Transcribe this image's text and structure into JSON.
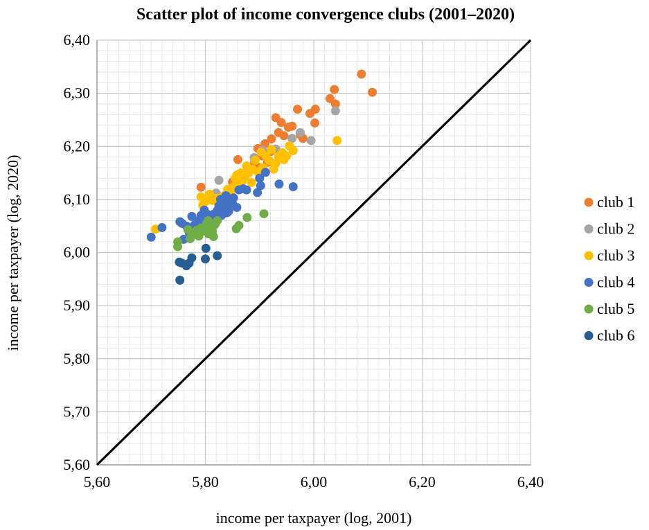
{
  "chart_data": {
    "type": "scatter",
    "title": "Scatter plot of income convergence clubs (2001–2020)",
    "xlabel": "income per taxpayer (log, 2001)",
    "ylabel": "income per taxpayer (log, 2020)",
    "xlim": [
      5.6,
      6.4
    ],
    "ylim": [
      5.6,
      6.4
    ],
    "x_ticks": [
      "5,60",
      "5,80",
      "6,00",
      "6,20",
      "6,40"
    ],
    "y_ticks": [
      "5,60",
      "5,70",
      "5,80",
      "5,90",
      "6,00",
      "6,10",
      "6,20",
      "6,30",
      "6,40"
    ],
    "grid": true,
    "legend_position": "right",
    "reference_line": {
      "type": "y=x",
      "color": "#000000"
    },
    "series": [
      {
        "name": "club 1",
        "color": "#ED7D31",
        "points": [
          [
            6.088,
            6.336
          ],
          [
            6.108,
            6.302
          ],
          [
            6.038,
            6.307
          ],
          [
            6.04,
            6.28
          ],
          [
            6.03,
            6.29
          ],
          [
            6.003,
            6.27
          ],
          [
            5.993,
            6.262
          ],
          [
            6.002,
            6.244
          ],
          [
            5.97,
            6.27
          ],
          [
            5.975,
            6.222
          ],
          [
            5.98,
            6.215
          ],
          [
            5.96,
            6.238
          ],
          [
            5.953,
            6.236
          ],
          [
            5.94,
            6.245
          ],
          [
            5.93,
            6.254
          ],
          [
            5.945,
            6.22
          ],
          [
            5.922,
            6.214
          ],
          [
            5.91,
            6.205
          ],
          [
            5.897,
            6.196
          ],
          [
            5.905,
            6.182
          ],
          [
            5.891,
            6.172
          ],
          [
            5.884,
            6.161
          ],
          [
            5.86,
            6.175
          ],
          [
            5.85,
            6.133
          ],
          [
            5.792,
            6.123
          ],
          [
            5.935,
            6.226
          ],
          [
            5.9,
            6.16
          ],
          [
            5.92,
            6.19
          ],
          [
            5.87,
            6.14
          ],
          [
            5.915,
            6.17
          ]
        ]
      },
      {
        "name": "club 2",
        "color": "#A5A5A5",
        "points": [
          [
            6.04,
            6.267
          ],
          [
            5.995,
            6.211
          ],
          [
            5.975,
            6.226
          ],
          [
            5.96,
            6.215
          ],
          [
            5.905,
            6.193
          ],
          [
            5.89,
            6.179
          ],
          [
            5.825,
            6.136
          ],
          [
            5.82,
            6.112
          ],
          [
            5.93,
            6.195
          ],
          [
            5.875,
            6.15
          ]
        ]
      },
      {
        "name": "club 3",
        "color": "#FFC000",
        "points": [
          [
            6.043,
            6.211
          ],
          [
            5.962,
            6.192
          ],
          [
            5.95,
            6.182
          ],
          [
            5.942,
            6.188
          ],
          [
            5.935,
            6.181
          ],
          [
            5.93,
            6.168
          ],
          [
            5.926,
            6.157
          ],
          [
            5.922,
            6.194
          ],
          [
            5.918,
            6.173
          ],
          [
            5.912,
            6.182
          ],
          [
            5.906,
            6.16
          ],
          [
            5.903,
            6.189
          ],
          [
            5.897,
            6.152
          ],
          [
            5.892,
            6.174
          ],
          [
            5.887,
            6.157
          ],
          [
            5.88,
            6.15
          ],
          [
            5.876,
            6.163
          ],
          [
            5.872,
            6.142
          ],
          [
            5.868,
            6.135
          ],
          [
            5.864,
            6.128
          ],
          [
            5.858,
            6.146
          ],
          [
            5.852,
            6.124
          ],
          [
            5.847,
            6.111
          ],
          [
            5.841,
            6.119
          ],
          [
            5.836,
            6.108
          ],
          [
            5.83,
            6.104
          ],
          [
            5.826,
            6.095
          ],
          [
            5.82,
            6.102
          ],
          [
            5.814,
            6.098
          ],
          [
            5.808,
            6.11
          ],
          [
            5.8,
            6.096
          ],
          [
            5.795,
            6.089
          ],
          [
            5.792,
            6.105
          ],
          [
            5.708,
            6.044
          ],
          [
            5.955,
            6.201
          ],
          [
            5.945,
            6.175
          ],
          [
            5.9,
            6.14
          ],
          [
            5.885,
            6.132
          ],
          [
            5.865,
            6.15
          ],
          [
            5.855,
            6.14
          ]
        ]
      },
      {
        "name": "club 4",
        "color": "#4472C4",
        "points": [
          [
            5.962,
            6.124
          ],
          [
            5.936,
            6.129
          ],
          [
            5.911,
            6.151
          ],
          [
            5.902,
            6.126
          ],
          [
            5.896,
            6.113
          ],
          [
            5.9,
            6.14
          ],
          [
            5.876,
            6.118
          ],
          [
            5.87,
            6.12
          ],
          [
            5.862,
            6.118
          ],
          [
            5.858,
            6.085
          ],
          [
            5.852,
            6.103
          ],
          [
            5.846,
            6.096
          ],
          [
            5.843,
            6.078
          ],
          [
            5.84,
            6.09
          ],
          [
            5.838,
            6.107
          ],
          [
            5.835,
            6.085
          ],
          [
            5.832,
            6.095
          ],
          [
            5.83,
            6.07
          ],
          [
            5.828,
            6.1
          ],
          [
            5.825,
            6.088
          ],
          [
            5.822,
            6.079
          ],
          [
            5.818,
            6.058
          ],
          [
            5.815,
            6.072
          ],
          [
            5.812,
            6.066
          ],
          [
            5.806,
            6.071
          ],
          [
            5.803,
            6.061
          ],
          [
            5.798,
            6.08
          ],
          [
            5.795,
            6.056
          ],
          [
            5.792,
            6.07
          ],
          [
            5.788,
            6.06
          ],
          [
            5.785,
            6.045
          ],
          [
            5.78,
            6.052
          ],
          [
            5.775,
            6.068
          ],
          [
            5.77,
            6.038
          ],
          [
            5.765,
            6.05
          ],
          [
            5.76,
            6.025
          ],
          [
            5.757,
            6.055
          ],
          [
            5.753,
            6.058
          ],
          [
            5.72,
            6.047
          ],
          [
            5.7,
            6.029
          ],
          [
            5.84,
            6.075
          ],
          [
            5.85,
            6.092
          ],
          [
            5.835,
            6.1
          ],
          [
            5.826,
            6.085
          ]
        ]
      },
      {
        "name": "club 5",
        "color": "#70AD47",
        "points": [
          [
            5.908,
            6.073
          ],
          [
            5.877,
            6.066
          ],
          [
            5.862,
            6.051
          ],
          [
            5.857,
            6.045
          ],
          [
            5.822,
            6.06
          ],
          [
            5.818,
            6.053
          ],
          [
            5.813,
            6.041
          ],
          [
            5.81,
            6.052
          ],
          [
            5.806,
            6.035
          ],
          [
            5.802,
            6.054
          ],
          [
            5.799,
            6.048
          ],
          [
            5.795,
            6.04
          ],
          [
            5.792,
            6.046
          ],
          [
            5.788,
            6.031
          ],
          [
            5.784,
            6.042
          ],
          [
            5.78,
            6.037
          ],
          [
            5.775,
            6.033
          ],
          [
            5.772,
            6.026
          ],
          [
            5.768,
            6.043
          ],
          [
            5.749,
            6.02
          ],
          [
            5.749,
            6.011
          ],
          [
            5.815,
            6.03
          ],
          [
            5.805,
            6.06
          ]
        ]
      },
      {
        "name": "club 6",
        "color": "#255E91",
        "points": [
          [
            5.822,
            5.994
          ],
          [
            5.801,
            6.008
          ],
          [
            5.8,
            5.988
          ],
          [
            5.775,
            5.99
          ],
          [
            5.77,
            5.98
          ],
          [
            5.765,
            5.975
          ],
          [
            5.757,
            5.98
          ],
          [
            5.752,
            5.982
          ],
          [
            5.753,
            5.948
          ]
        ]
      }
    ]
  }
}
